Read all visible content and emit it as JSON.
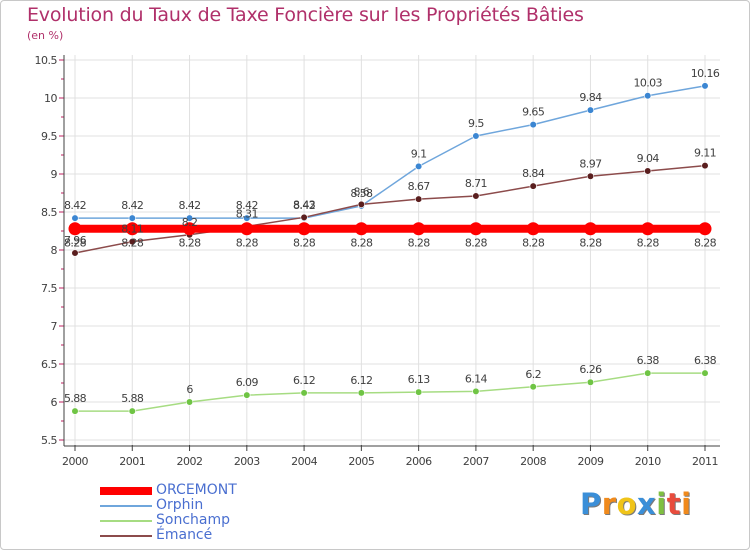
{
  "title": "Evolution du Taux de Taxe Foncière sur les Propriétés Bâties",
  "subtitle": "(en %)",
  "colors": {
    "title": "#b0306a",
    "axis_label": "#404040",
    "legend_text": "#4a6fd0",
    "grid": "#e0e0e0"
  },
  "chart_data": {
    "type": "line",
    "title": "Evolution du Taux de Taxe Foncière sur les Propriétés Bâties",
    "ylabel": "(en %)",
    "xlabel": "",
    "ylim": [
      5.5,
      10.5
    ],
    "yticks": [
      "5.5",
      "6",
      "6.5",
      "7",
      "7.5",
      "8",
      "8.5",
      "9",
      "9.5",
      "10",
      "10.5"
    ],
    "categories": [
      "2000",
      "2001",
      "2002",
      "2003",
      "2004",
      "2005",
      "2006",
      "2007",
      "2008",
      "2009",
      "2010",
      "2011"
    ],
    "grid": true,
    "legend_position": "bottom-left",
    "series": [
      {
        "name": "ORCEMONT",
        "color": "#ff0000",
        "marker_color": "#ff0000",
        "thick": true,
        "values": [
          8.28,
          8.28,
          8.28,
          8.28,
          8.28,
          8.28,
          8.28,
          8.28,
          8.28,
          8.28,
          8.28,
          8.28
        ],
        "labels": [
          "8.28",
          "8.28",
          "8.28",
          "8.28",
          "8.28",
          "8.28",
          "8.28",
          "8.28",
          "8.28",
          "8.28",
          "8.28",
          "8.28"
        ]
      },
      {
        "name": "Orphin",
        "color": "#6fa6dc",
        "marker_color": "#3b86d2",
        "thick": false,
        "values": [
          8.42,
          8.42,
          8.42,
          8.42,
          8.42,
          8.58,
          9.1,
          9.5,
          9.65,
          9.84,
          10.03,
          10.16
        ],
        "labels": [
          "8.42",
          "8.42",
          "8.42",
          "8.42",
          "8.42",
          "8.58",
          "9.1",
          "9.5",
          "9.65",
          "9.84",
          "10.03",
          "10.16"
        ]
      },
      {
        "name": "Sonchamp",
        "color": "#a6dc82",
        "marker_color": "#6fc444",
        "thick": false,
        "values": [
          5.88,
          5.88,
          6.0,
          6.09,
          6.12,
          6.12,
          6.13,
          6.14,
          6.2,
          6.26,
          6.38,
          6.38
        ],
        "labels": [
          "5.88",
          "5.88",
          "6",
          "6.09",
          "6.12",
          "6.12",
          "6.13",
          "6.14",
          "6.2",
          "6.26",
          "6.38",
          "6.38"
        ]
      },
      {
        "name": "Émancé",
        "color": "#8c4b4b",
        "marker_color": "#5a1e1e",
        "thick": false,
        "values": [
          7.96,
          8.11,
          8.2,
          8.31,
          8.43,
          8.6,
          8.67,
          8.71,
          8.84,
          8.97,
          9.04,
          9.11
        ],
        "labels": [
          "7.96",
          "8.11",
          "8.2",
          "8.31",
          "8.43",
          "8.6",
          "8.67",
          "8.71",
          "8.84",
          "8.97",
          "9.04",
          "9.11"
        ]
      }
    ]
  },
  "legend": {
    "items": [
      "ORCEMONT",
      "Orphin",
      "Sonchamp",
      "Émancé"
    ]
  },
  "logo": {
    "letters": [
      "P",
      "r",
      "o",
      "x",
      "i",
      "t",
      "i"
    ],
    "colors": [
      "#3b8fd8",
      "#f08a1c",
      "#f0c419",
      "#3b8fd8",
      "#7fc041",
      "#e84c3d",
      "#f08a1c"
    ]
  }
}
